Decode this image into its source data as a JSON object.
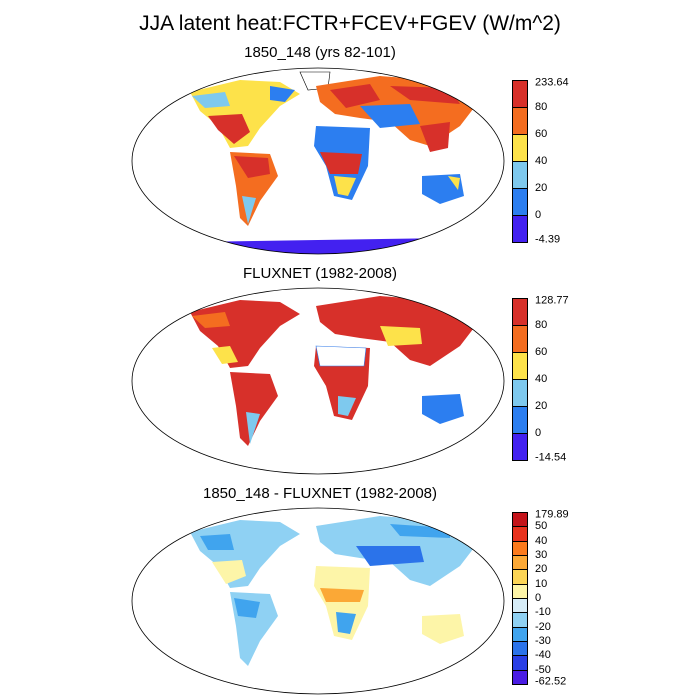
{
  "title": "JJA latent heat:FCTR+FCEV+FGEV (W/m^2)",
  "panels": [
    {
      "title": "1850_148 (yrs 82-101)",
      "colorbar": {
        "labels": [
          "233.64",
          "80",
          "60",
          "40",
          "20",
          "0",
          "-4.39"
        ],
        "colors": [
          "#d7302a",
          "#f46d20",
          "#fde24a",
          "#7ec9ee",
          "#2c7ef0",
          "#4321f0"
        ]
      }
    },
    {
      "title": "FLUXNET (1982-2008)",
      "colorbar": {
        "labels": [
          "128.77",
          "80",
          "60",
          "40",
          "20",
          "0",
          "-14.54"
        ],
        "colors": [
          "#d7302a",
          "#f46d20",
          "#fde24a",
          "#7ec9ee",
          "#2c7ef0",
          "#4321f0"
        ]
      }
    },
    {
      "title": "1850_148 - FLUXNET (1982-2008)",
      "colorbar": {
        "labels": [
          "179.89",
          "50",
          "40",
          "30",
          "20",
          "10",
          "0",
          "-10",
          "-20",
          "-30",
          "-40",
          "-50",
          "-62.52"
        ],
        "colors": [
          "#c4141a",
          "#e8321e",
          "#fb7a1d",
          "#fba836",
          "#fcd556",
          "#fdf5a8",
          "#d6ecf7",
          "#8fd1f3",
          "#40a4ee",
          "#2b73ea",
          "#2a3fe6",
          "#4a1ce3"
        ]
      }
    }
  ]
}
